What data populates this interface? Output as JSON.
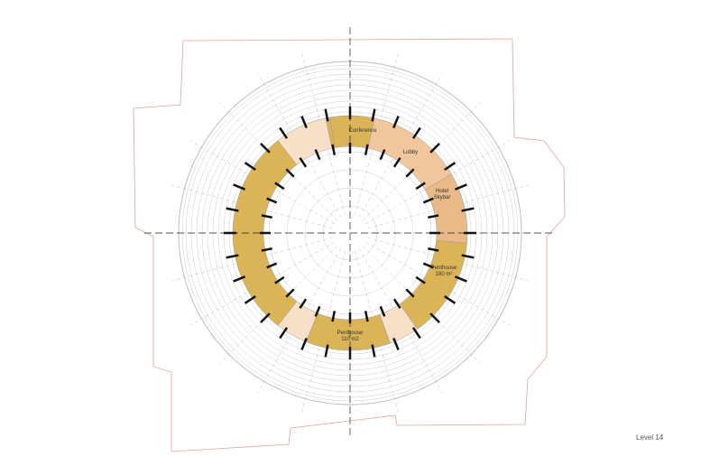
{
  "title": "Level 14",
  "rooms": [
    {
      "name": "Conference",
      "lines": [
        "Conference"
      ]
    },
    {
      "name": "Lobby",
      "lines": [
        "Lobby"
      ]
    },
    {
      "name": "Hotel Skybar",
      "lines": [
        "Hotel",
        "Skybar"
      ]
    },
    {
      "name": "Penthouse 180 m²",
      "lines": [
        "Penthouse",
        "180 m²"
      ]
    },
    {
      "name": "Penthouse 110 m2",
      "lines": [
        "Penthouse",
        "110 m2"
      ]
    }
  ],
  "colors": {
    "site_boundary": "#e0a49a",
    "apartment": "#dcb458",
    "public": "#f1c69d",
    "service": "#f8e0c8",
    "lines": "#bdbdbd",
    "walls": "#111111"
  }
}
